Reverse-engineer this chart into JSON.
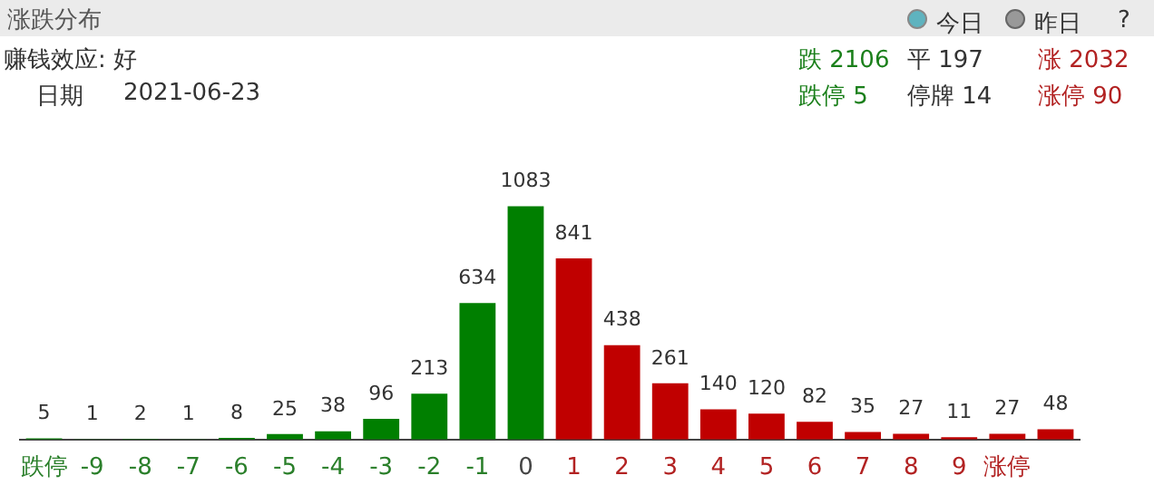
{
  "chart_data": {
    "type": "bar",
    "title": "涨跌分布",
    "categories": [
      "跌停",
      "-9",
      "-8",
      "-7",
      "-6",
      "-5",
      "-4",
      "-3",
      "-2",
      "-1",
      "0",
      "1",
      "2",
      "3",
      "4",
      "5",
      "6",
      "7",
      "8",
      "9",
      "涨停",
      null
    ],
    "values": [
      5,
      1,
      2,
      1,
      8,
      25,
      38,
      96,
      213,
      634,
      1083,
      841,
      438,
      261,
      140,
      120,
      82,
      35,
      27,
      11,
      27,
      48
    ],
    "colors": [
      "#007f00",
      "#007f00",
      "#007f00",
      "#007f00",
      "#007f00",
      "#007f00",
      "#007f00",
      "#007f00",
      "#007f00",
      "#007f00",
      "#007f00",
      "#c00000",
      "#c00000",
      "#c00000",
      "#c00000",
      "#c00000",
      "#c00000",
      "#c00000",
      "#c00000",
      "#c00000",
      "#c00000",
      "#c00000"
    ],
    "data_labels": true,
    "tick_labels": "x",
    "grid": false,
    "legend": false,
    "annotations": [
      "今日",
      "昨日",
      "?",
      "赚钱效应: 好",
      "日期",
      "2021-06-23",
      "跌 2106",
      "平 197",
      "涨 2032",
      "跌停 5",
      "停牌 14",
      "涨停 90"
    ]
  }
}
